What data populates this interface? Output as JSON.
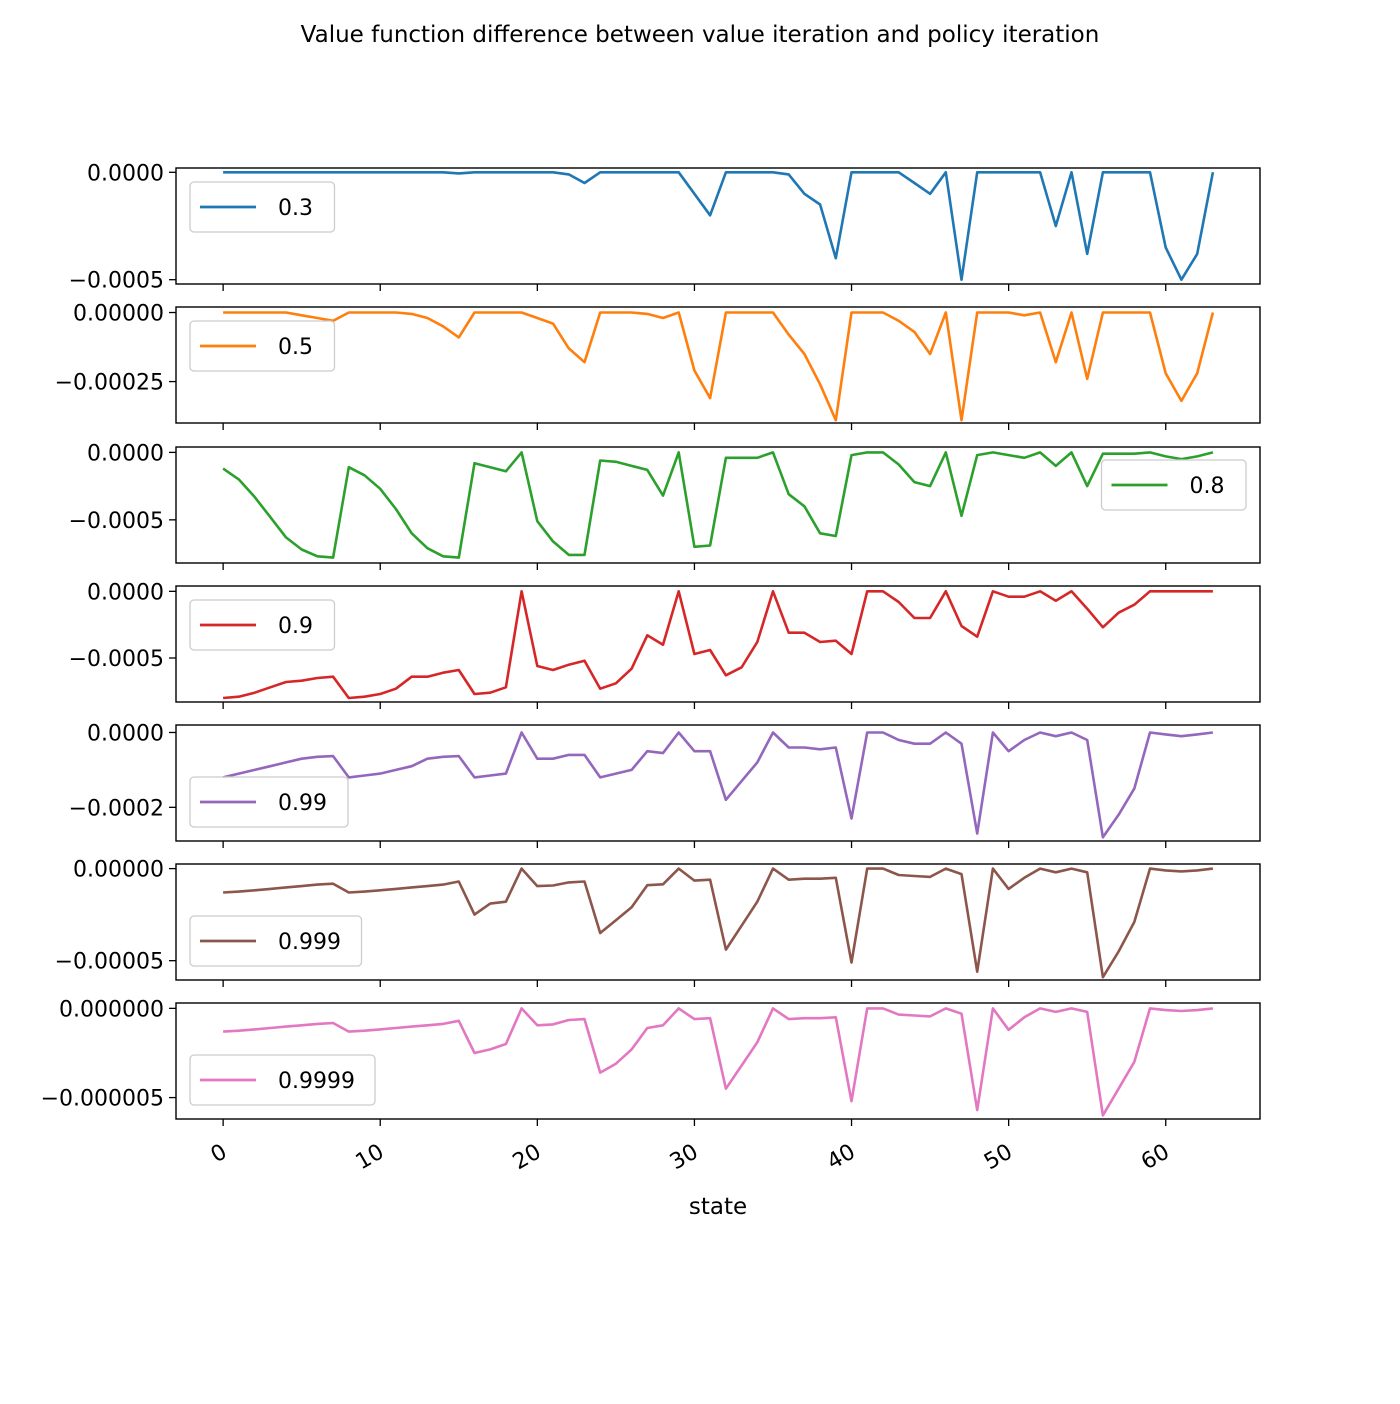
{
  "chart_data": {
    "type": "line",
    "title": "Value function difference between value iteration and policy iteration",
    "xlabel": "state",
    "xlim": [
      -3,
      66
    ],
    "x_ticks": [
      0,
      10,
      20,
      30,
      40,
      50,
      60
    ],
    "x_tick_labels": [
      "0",
      "10",
      "20",
      "30",
      "40",
      "50",
      "60"
    ],
    "grid": false,
    "subplots": [
      {
        "name": "0.3",
        "color": "#1f77b4",
        "legend": "upper-left",
        "ylim": [
          -0.00052,
          2e-05
        ],
        "y_ticks": [
          0,
          -0.0005
        ],
        "y_tick_labels": [
          "0.0000",
          "−0.0005"
        ],
        "values": [
          0,
          0,
          0,
          0,
          0,
          0,
          0,
          0,
          0,
          0,
          0,
          0,
          0,
          0,
          0,
          -5e-06,
          0,
          0,
          0,
          0,
          0,
          0,
          -1e-05,
          -5e-05,
          0,
          0,
          0,
          0,
          0,
          0,
          -0.0001,
          -0.0002,
          0,
          0,
          0,
          0,
          -1e-05,
          -0.0001,
          -0.00015,
          -0.0004,
          0,
          0,
          0,
          0,
          -5e-05,
          -0.0001,
          0,
          -0.0005,
          0,
          0,
          0,
          0,
          0,
          -0.00025,
          0,
          -0.00038,
          0,
          0,
          0,
          0,
          -0.00035,
          -0.0005,
          -0.00038,
          0
        ]
      },
      {
        "name": "0.5",
        "color": "#ff7f0e",
        "legend": "upper-left",
        "ylim": [
          -0.0004,
          2e-05
        ],
        "y_ticks": [
          0,
          -0.00025
        ],
        "y_tick_labels": [
          "0.00000",
          "−0.00025"
        ],
        "values": [
          0,
          0,
          0,
          0,
          0,
          -1e-05,
          -2e-05,
          -3e-05,
          0,
          0,
          0,
          0,
          -5e-06,
          -2e-05,
          -5e-05,
          -9e-05,
          0,
          0,
          0,
          0,
          -2e-05,
          -4e-05,
          -0.00013,
          -0.00018,
          0,
          0,
          0,
          -5e-06,
          -2e-05,
          0,
          -0.00021,
          -0.00031,
          0,
          0,
          0,
          0,
          -8e-05,
          -0.00015,
          -0.00026,
          -0.00039,
          0,
          0,
          0,
          -3e-05,
          -7e-05,
          -0.00015,
          0,
          -0.00039,
          0,
          0,
          0,
          -1e-05,
          0,
          -0.00018,
          0,
          -0.00024,
          0,
          0,
          0,
          0,
          -0.00022,
          -0.00032,
          -0.00022,
          0
        ]
      },
      {
        "name": "0.8",
        "color": "#2ca02c",
        "legend": "right",
        "ylim": [
          -0.00082,
          4e-05
        ],
        "y_ticks": [
          0,
          -0.0005
        ],
        "y_tick_labels": [
          "0.0000",
          "−0.0005"
        ],
        "values": [
          -0.00012,
          -0.0002,
          -0.00033,
          -0.00048,
          -0.00063,
          -0.00072,
          -0.00077,
          -0.00078,
          -0.00011,
          -0.00017,
          -0.00027,
          -0.00042,
          -0.0006,
          -0.00071,
          -0.00077,
          -0.00078,
          -8e-05,
          -0.00011,
          -0.00014,
          0,
          -0.00051,
          -0.00066,
          -0.00076,
          -0.00076,
          -6e-05,
          -7e-05,
          -0.0001,
          -0.00013,
          -0.00032,
          0,
          -0.0007,
          -0.00069,
          -4e-05,
          -4e-05,
          -4e-05,
          0,
          -0.00031,
          -0.0004,
          -0.0006,
          -0.00062,
          -2e-05,
          0,
          0,
          -9e-05,
          -0.00022,
          -0.00025,
          0,
          -0.00047,
          -2e-05,
          0,
          -2e-05,
          -4e-05,
          0,
          -0.0001,
          0,
          -0.00025,
          -1e-05,
          -1e-05,
          -1e-05,
          0,
          -3e-05,
          -5e-05,
          -3e-05,
          0
        ]
      },
      {
        "name": "0.9",
        "color": "#d62728",
        "legend": "upper-left",
        "ylim": [
          -0.00083,
          4e-05
        ],
        "y_ticks": [
          0,
          -0.0005
        ],
        "y_tick_labels": [
          "0.0000",
          "−0.0005"
        ],
        "values": [
          -0.0008,
          -0.00079,
          -0.00076,
          -0.00072,
          -0.00068,
          -0.00067,
          -0.00065,
          -0.00064,
          -0.0008,
          -0.00079,
          -0.00077,
          -0.00073,
          -0.00064,
          -0.00064,
          -0.00061,
          -0.00059,
          -0.00077,
          -0.00076,
          -0.00072,
          0,
          -0.00056,
          -0.00059,
          -0.00055,
          -0.00052,
          -0.00073,
          -0.00069,
          -0.00058,
          -0.00033,
          -0.0004,
          0,
          -0.00047,
          -0.00044,
          -0.00063,
          -0.00057,
          -0.00038,
          0,
          -0.00031,
          -0.00031,
          -0.00038,
          -0.00037,
          -0.00047,
          0,
          0,
          -8e-05,
          -0.0002,
          -0.0002,
          0,
          -0.00026,
          -0.00034,
          0,
          -4e-05,
          -4e-05,
          0,
          -7e-05,
          0,
          -0.00013,
          -0.00027,
          -0.00016,
          -0.0001,
          0,
          0,
          0,
          0,
          0
        ]
      },
      {
        "name": "0.99",
        "color": "#9467bd",
        "legend": "lower-left",
        "ylim": [
          -0.00029,
          2e-05
        ],
        "y_ticks": [
          0,
          -0.0002
        ],
        "y_tick_labels": [
          "0.0000",
          "−0.0002"
        ],
        "values": [
          -0.00012,
          -0.00011,
          -0.0001,
          -9e-05,
          -8e-05,
          -7e-05,
          -6.5e-05,
          -6.3e-05,
          -0.00012,
          -0.000115,
          -0.00011,
          -0.0001,
          -9e-05,
          -7e-05,
          -6.5e-05,
          -6.3e-05,
          -0.00012,
          -0.000115,
          -0.00011,
          0,
          -7e-05,
          -7e-05,
          -6e-05,
          -6e-05,
          -0.00012,
          -0.00011,
          -0.0001,
          -5e-05,
          -5.5e-05,
          0,
          -5e-05,
          -5e-05,
          -0.00018,
          -0.00013,
          -8e-05,
          0,
          -4e-05,
          -4e-05,
          -4.5e-05,
          -4e-05,
          -0.00023,
          0,
          0,
          -2e-05,
          -3e-05,
          -3e-05,
          0,
          -3e-05,
          -0.00027,
          0,
          -5e-05,
          -2e-05,
          0,
          -1e-05,
          0,
          -2e-05,
          -0.00028,
          -0.00022,
          -0.00015,
          0,
          -5e-06,
          -1e-05,
          -5e-06,
          0
        ]
      },
      {
        "name": "0.999",
        "color": "#8c564b",
        "legend": "lower-left",
        "ylim": [
          -6.05e-05,
          2.5e-06
        ],
        "y_ticks": [
          0,
          -5e-05
        ],
        "y_tick_labels": [
          "0.00000",
          "−0.00005"
        ],
        "values": [
          -1.3e-05,
          -1.25e-05,
          -1.18e-05,
          -1.1e-05,
          -1.02e-05,
          -9.5e-06,
          -8.7e-06,
          -8.2e-06,
          -1.3e-05,
          -1.25e-05,
          -1.18e-05,
          -1.1e-05,
          -1.02e-05,
          -9.5e-06,
          -8.7e-06,
          -7e-06,
          -2.5e-05,
          -1.9e-05,
          -1.8e-05,
          0,
          -9.5e-06,
          -9.2e-06,
          -7.5e-06,
          -7e-06,
          -3.5e-05,
          -2.8e-05,
          -2.1e-05,
          -9e-06,
          -8.5e-06,
          0,
          -6.5e-06,
          -6e-06,
          -4.4e-05,
          -3.1e-05,
          -1.8e-05,
          0,
          -6e-06,
          -5.5e-06,
          -5.5e-06,
          -5e-06,
          -5.1e-05,
          0,
          0,
          -3.5e-06,
          -4e-06,
          -4.5e-06,
          0,
          -3e-06,
          -5.6e-05,
          0,
          -1.1e-05,
          -5e-06,
          0,
          -2e-06,
          0,
          -2e-06,
          -5.9e-05,
          -4.5e-05,
          -2.9e-05,
          0,
          -1e-06,
          -1.5e-06,
          -1e-06,
          0
        ]
      },
      {
        "name": "0.9999",
        "color": "#e377c2",
        "legend": "lower-left",
        "ylim": [
          -6.2e-06,
          3e-07
        ],
        "y_ticks": [
          0,
          -5e-06
        ],
        "y_tick_labels": [
          "0.000000",
          "−0.000005"
        ],
        "values": [
          -1.3e-06,
          -1.25e-06,
          -1.18e-06,
          -1.1e-06,
          -1.02e-06,
          -9.5e-07,
          -8.7e-07,
          -8.2e-07,
          -1.3e-06,
          -1.25e-06,
          -1.18e-06,
          -1.1e-06,
          -1.02e-06,
          -9.5e-07,
          -8.7e-07,
          -7e-07,
          -2.5e-06,
          -2.3e-06,
          -2e-06,
          0,
          -9.5e-07,
          -9e-07,
          -6.5e-07,
          -6e-07,
          -3.6e-06,
          -3.1e-06,
          -2.3e-06,
          -1.1e-06,
          -9.5e-07,
          0,
          -6e-07,
          -5.5e-07,
          -4.5e-06,
          -3.2e-06,
          -1.9e-06,
          0,
          -6e-07,
          -5.5e-07,
          -5.5e-07,
          -5e-07,
          -5.2e-06,
          0,
          0,
          -3.5e-07,
          -4e-07,
          -4.5e-07,
          0,
          -3e-07,
          -5.7e-06,
          0,
          -1.2e-06,
          -5e-07,
          0,
          -2e-07,
          0,
          -2e-07,
          -6e-06,
          -4.5e-06,
          -3e-06,
          0,
          -1e-07,
          -1.5e-07,
          -1e-07,
          0
        ]
      }
    ]
  }
}
